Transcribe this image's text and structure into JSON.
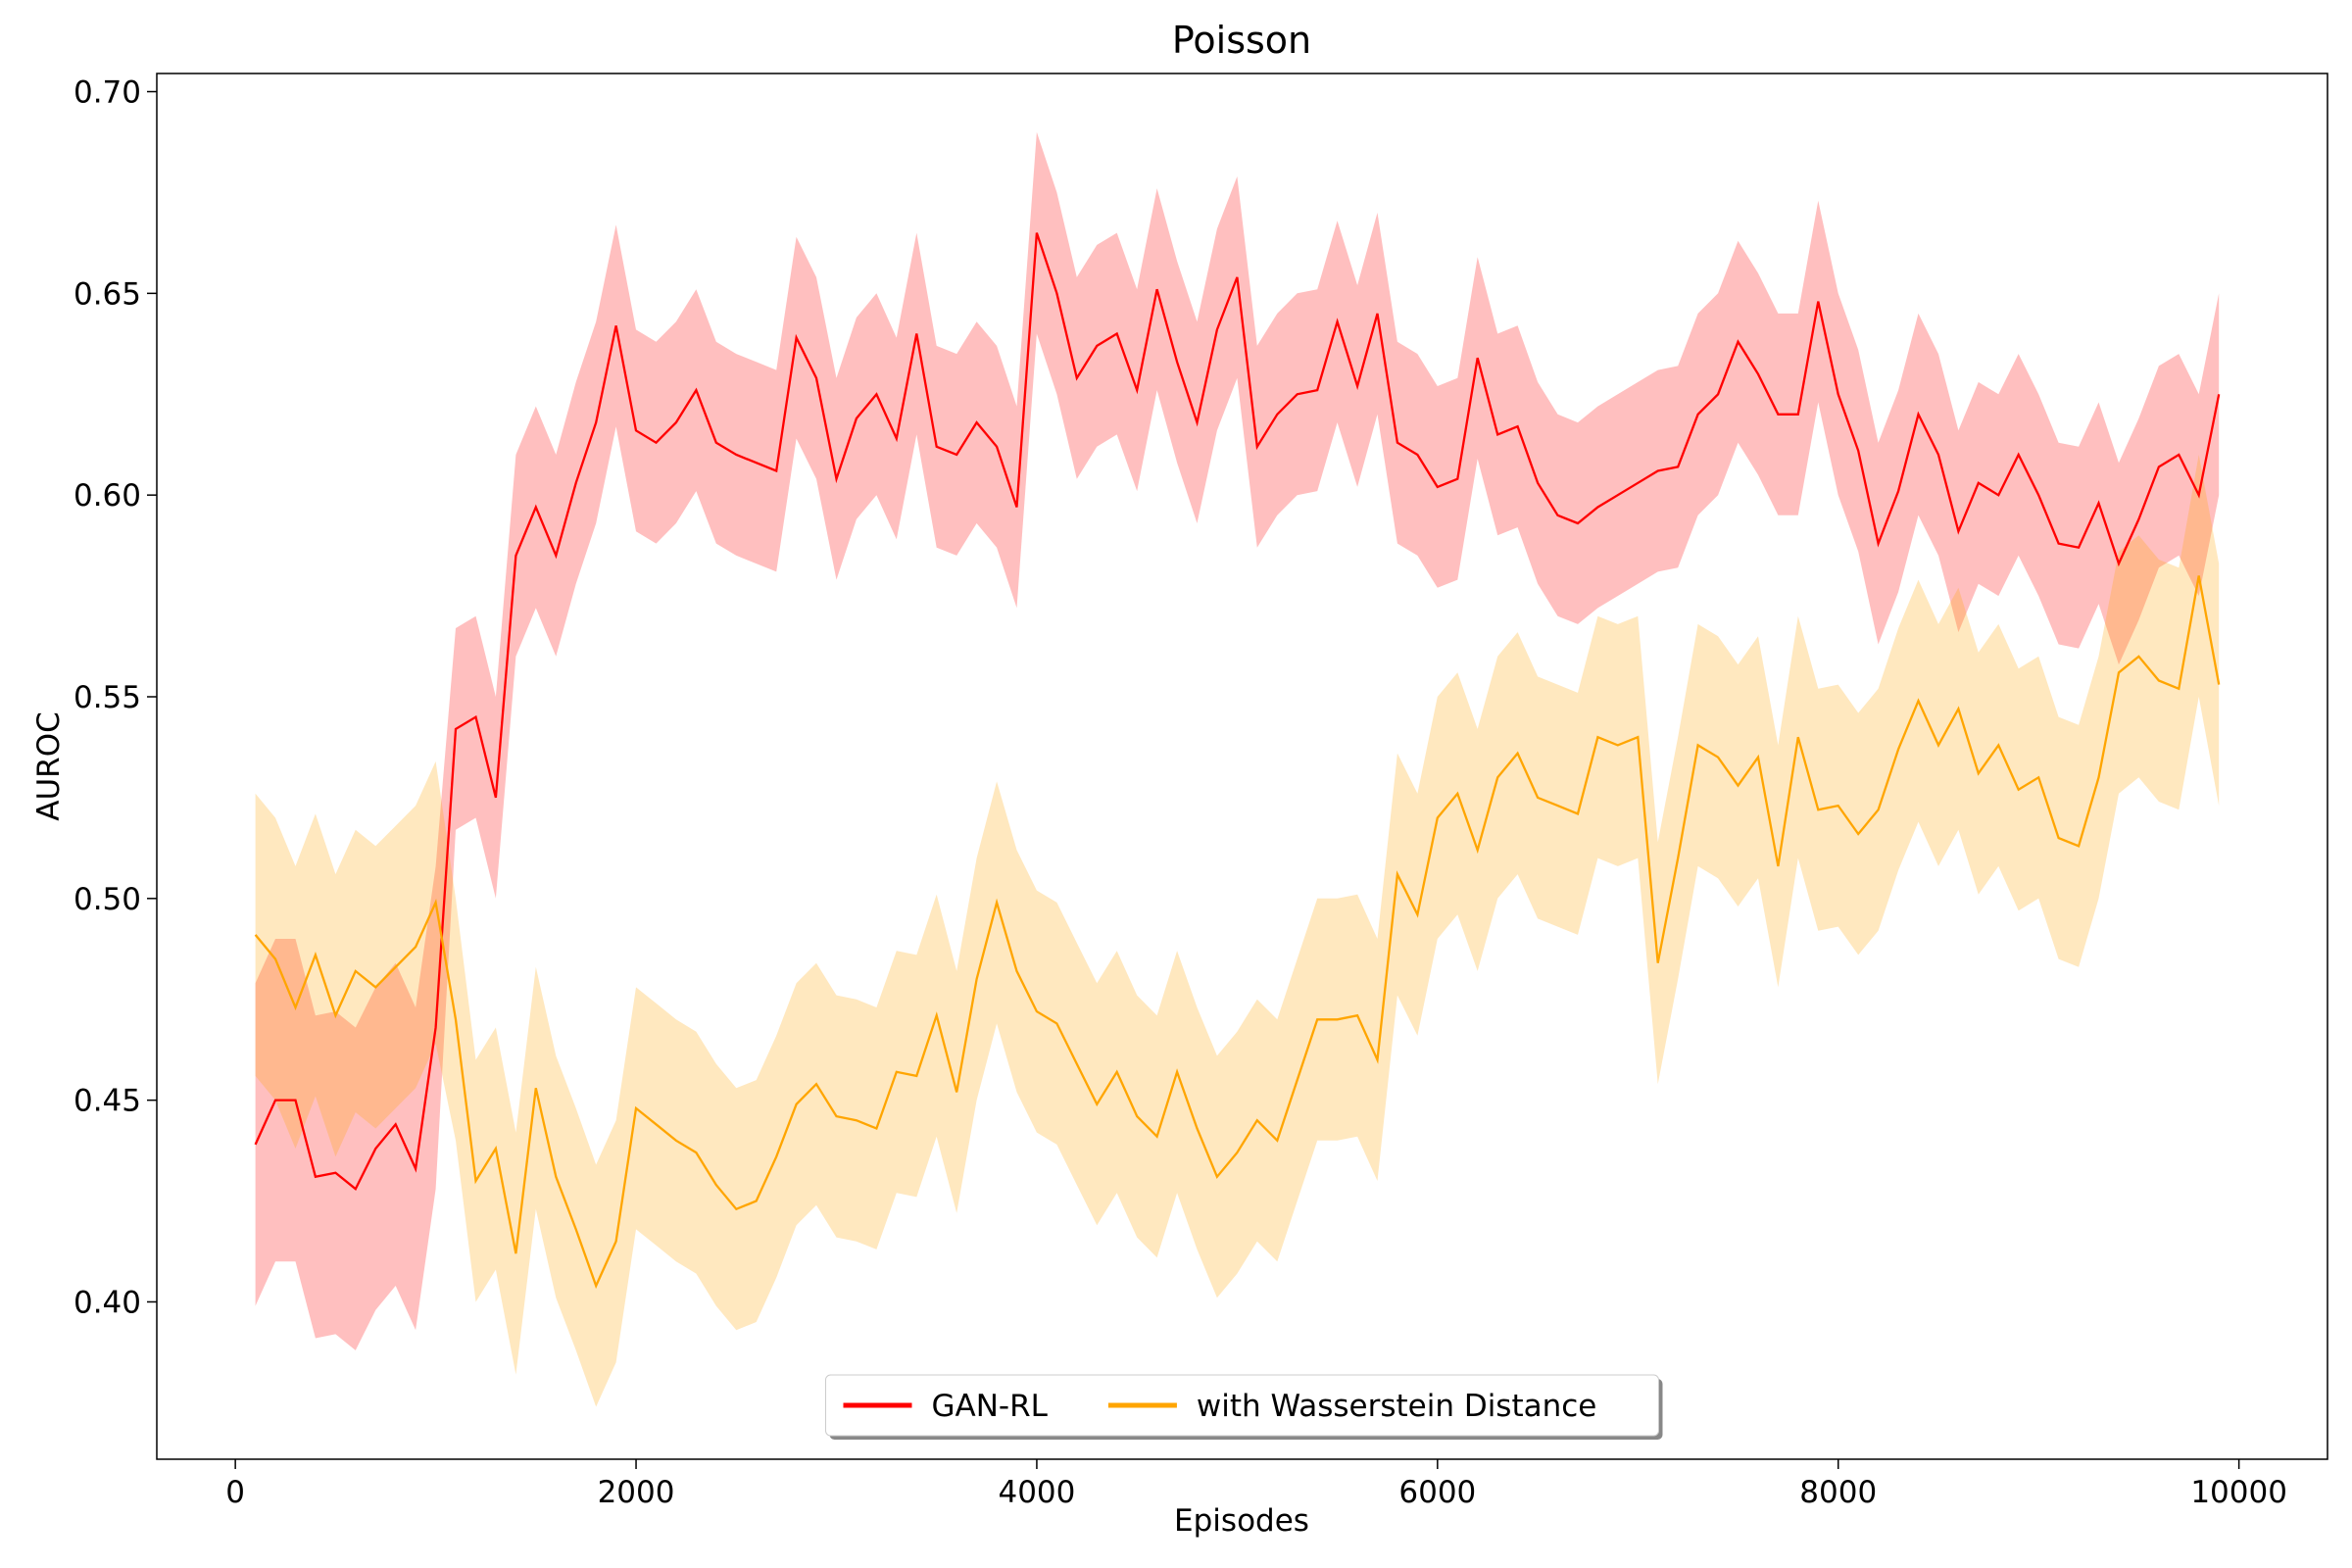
{
  "chart_data": {
    "type": "line",
    "title": "Poisson",
    "xlabel": "Episodes",
    "ylabel": "AUROC",
    "x": [
      100,
      200,
      300,
      400,
      500,
      600,
      700,
      800,
      900,
      1000,
      1100,
      1200,
      1300,
      1400,
      1500,
      1600,
      1700,
      1800,
      1900,
      2000,
      2100,
      2200,
      2300,
      2400,
      2500,
      2600,
      2700,
      2800,
      2900,
      3000,
      3100,
      3200,
      3300,
      3400,
      3500,
      3600,
      3700,
      3800,
      3900,
      4000,
      4100,
      4200,
      4300,
      4400,
      4500,
      4600,
      4700,
      4800,
      4900,
      5000,
      5100,
      5200,
      5300,
      5400,
      5500,
      5600,
      5700,
      5800,
      5900,
      6000,
      6100,
      6200,
      6300,
      6400,
      6500,
      6600,
      6700,
      6800,
      6900,
      7000,
      7100,
      7200,
      7300,
      7400,
      7500,
      7600,
      7700,
      7800,
      7900,
      8000,
      8100,
      8200,
      8300,
      8400,
      8500,
      8600,
      8700,
      8800,
      8900,
      9000,
      9100,
      9200,
      9300,
      9400,
      9500,
      9600,
      9700,
      9800,
      9900
    ],
    "series": [
      {
        "name": "GAN-RL",
        "color": "#ff0000",
        "values": [
          0.439,
          0.45,
          0.45,
          0.431,
          0.432,
          0.428,
          0.438,
          0.444,
          0.433,
          0.468,
          0.542,
          0.545,
          0.525,
          0.585,
          0.597,
          0.585,
          0.603,
          0.618,
          0.642,
          0.616,
          0.613,
          0.618,
          0.626,
          0.613,
          0.61,
          0.608,
          0.606,
          0.639,
          0.629,
          0.604,
          0.619,
          0.625,
          0.614,
          0.64,
          0.612,
          0.61,
          0.618,
          0.612,
          0.597,
          0.665,
          0.65,
          0.629,
          0.637,
          0.64,
          0.626,
          0.651,
          0.633,
          0.618,
          0.641,
          0.654,
          0.612,
          0.62,
          0.625,
          0.626,
          0.643,
          0.627,
          0.645,
          0.613,
          0.61,
          0.602,
          0.604,
          0.634,
          0.615,
          0.617,
          0.603,
          0.595,
          0.593,
          0.597,
          0.6,
          0.603,
          0.606,
          0.607,
          0.62,
          0.625,
          0.638,
          0.63,
          0.62,
          0.62,
          0.648,
          0.625,
          0.611,
          0.588,
          0.601,
          0.62,
          0.61,
          0.591,
          0.603,
          0.6,
          0.61,
          0.6,
          0.588,
          0.587,
          0.598,
          0.583,
          0.594,
          0.607,
          0.61,
          0.6,
          0.625
        ],
        "std": [
          0.04,
          0.04,
          0.04,
          0.04,
          0.04,
          0.04,
          0.04,
          0.04,
          0.04,
          0.04,
          0.025,
          0.025,
          0.025,
          0.025,
          0.025,
          0.025,
          0.025,
          0.025,
          0.025,
          0.025,
          0.025,
          0.025,
          0.025,
          0.025,
          0.025,
          0.025,
          0.025,
          0.025,
          0.025,
          0.025,
          0.025,
          0.025,
          0.025,
          0.025,
          0.025,
          0.025,
          0.025,
          0.025,
          0.025,
          0.025,
          0.025,
          0.025,
          0.025,
          0.025,
          0.025,
          0.025,
          0.025,
          0.025,
          0.025,
          0.025,
          0.025,
          0.025,
          0.025,
          0.025,
          0.025,
          0.025,
          0.025,
          0.025,
          0.025,
          0.025,
          0.025,
          0.025,
          0.025,
          0.025,
          0.025,
          0.025,
          0.025,
          0.025,
          0.025,
          0.025,
          0.025,
          0.025,
          0.025,
          0.025,
          0.025,
          0.025,
          0.025,
          0.025,
          0.025,
          0.025,
          0.025,
          0.025,
          0.025,
          0.025,
          0.025,
          0.025,
          0.025,
          0.025,
          0.025,
          0.025,
          0.025,
          0.025,
          0.025,
          0.025,
          0.025,
          0.025,
          0.025,
          0.025,
          0.025
        ]
      },
      {
        "name": "with Wasserstein Distance",
        "color": "#ffa500",
        "values": [
          0.491,
          0.485,
          0.473,
          0.486,
          0.471,
          0.482,
          0.478,
          0.483,
          0.488,
          0.499,
          0.47,
          0.43,
          0.438,
          0.412,
          0.453,
          0.431,
          0.418,
          0.404,
          0.415,
          0.448,
          0.444,
          0.44,
          0.437,
          0.429,
          0.423,
          0.425,
          0.436,
          0.449,
          0.454,
          0.446,
          0.445,
          0.443,
          0.457,
          0.456,
          0.471,
          0.452,
          0.48,
          0.499,
          0.482,
          0.472,
          0.469,
          0.459,
          0.449,
          0.457,
          0.446,
          0.441,
          0.457,
          0.443,
          0.431,
          0.437,
          0.445,
          0.44,
          0.455,
          0.47,
          0.47,
          0.471,
          0.46,
          0.506,
          0.496,
          0.52,
          0.526,
          0.512,
          0.53,
          0.536,
          0.525,
          0.523,
          0.521,
          0.54,
          0.538,
          0.54,
          0.484,
          0.51,
          0.538,
          0.535,
          0.528,
          0.535,
          0.508,
          0.54,
          0.522,
          0.523,
          0.516,
          0.522,
          0.537,
          0.549,
          0.538,
          0.547,
          0.531,
          0.538,
          0.527,
          0.53,
          0.515,
          0.513,
          0.53,
          0.556,
          0.56,
          0.554,
          0.552,
          0.58,
          0.553
        ],
        "std": [
          0.035,
          0.035,
          0.035,
          0.035,
          0.035,
          0.035,
          0.035,
          0.035,
          0.035,
          0.035,
          0.03,
          0.03,
          0.03,
          0.03,
          0.03,
          0.03,
          0.03,
          0.03,
          0.03,
          0.03,
          0.03,
          0.03,
          0.03,
          0.03,
          0.03,
          0.03,
          0.03,
          0.03,
          0.03,
          0.03,
          0.03,
          0.03,
          0.03,
          0.03,
          0.03,
          0.03,
          0.03,
          0.03,
          0.03,
          0.03,
          0.03,
          0.03,
          0.03,
          0.03,
          0.03,
          0.03,
          0.03,
          0.03,
          0.03,
          0.03,
          0.03,
          0.03,
          0.03,
          0.03,
          0.03,
          0.03,
          0.03,
          0.03,
          0.03,
          0.03,
          0.03,
          0.03,
          0.03,
          0.03,
          0.03,
          0.03,
          0.03,
          0.03,
          0.03,
          0.03,
          0.03,
          0.03,
          0.03,
          0.03,
          0.03,
          0.03,
          0.03,
          0.03,
          0.03,
          0.03,
          0.03,
          0.03,
          0.03,
          0.03,
          0.03,
          0.03,
          0.03,
          0.03,
          0.03,
          0.03,
          0.03,
          0.03,
          0.03,
          0.03,
          0.03,
          0.03,
          0.03,
          0.03,
          0.03
        ]
      }
    ],
    "xlim": [
      -392,
      10442
    ],
    "ylim": [
      0.361,
      0.7045
    ],
    "xticks": [
      0,
      2000,
      4000,
      6000,
      8000,
      10000
    ],
    "yticks": [
      {
        "value": 0.4,
        "label": "0.40"
      },
      {
        "value": 0.45,
        "label": "0.45"
      },
      {
        "value": 0.5,
        "label": "0.50"
      },
      {
        "value": 0.55,
        "label": "0.55"
      },
      {
        "value": 0.6,
        "label": "0.60"
      },
      {
        "value": 0.65,
        "label": "0.65"
      },
      {
        "value": 0.7,
        "label": "0.70"
      }
    ],
    "legend": "lower center"
  }
}
